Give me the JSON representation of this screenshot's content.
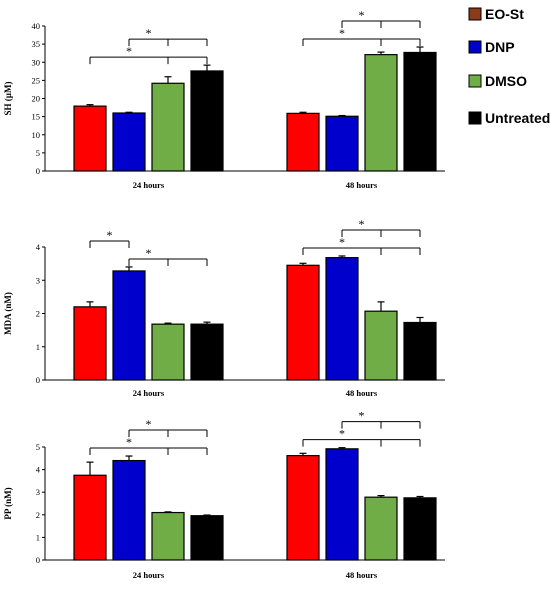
{
  "legend": [
    {
      "label": "EO-St",
      "color": "#8B3A1A"
    },
    {
      "label": "DNP",
      "color": "#0000CC"
    },
    {
      "label": "DMSO",
      "color": "#70AD47"
    },
    {
      "label": "Untreated",
      "color": "#000000"
    }
  ],
  "series_colors": [
    "#FF0000",
    "#0000CC",
    "#70AD47",
    "#000000"
  ],
  "significance_marker": "*",
  "chart_data": [
    {
      "type": "bar",
      "ylabel": "SH (µM)",
      "categories": [
        "24 hours",
        "48 hours"
      ],
      "ylim": [
        0,
        40
      ],
      "yticks": [
        0,
        5,
        10,
        15,
        20,
        25,
        30,
        35,
        40
      ],
      "series": [
        {
          "name": "EO-St",
          "values": [
            17.9,
            15.9
          ],
          "errors": [
            0.4,
            0.3
          ]
        },
        {
          "name": "DNP",
          "values": [
            16.0,
            15.1
          ],
          "errors": [
            0.2,
            0.2
          ]
        },
        {
          "name": "DMSO",
          "values": [
            24.2,
            32.1
          ],
          "errors": [
            1.8,
            0.7
          ]
        },
        {
          "name": "Untreated",
          "values": [
            27.6,
            32.7
          ],
          "errors": [
            1.6,
            1.5
          ]
        }
      ],
      "significance": [
        {
          "group": 0,
          "from": 1,
          "to": [
            2,
            3
          ]
        },
        {
          "group": 0,
          "from": 0,
          "to": [
            2,
            3
          ]
        },
        {
          "group": 1,
          "from": 1,
          "to": [
            2,
            3
          ]
        },
        {
          "group": 1,
          "from": 0,
          "to": [
            2,
            3
          ]
        }
      ]
    },
    {
      "type": "bar",
      "ylabel": "MDA (nM)",
      "categories": [
        "24 hours",
        "48 hours"
      ],
      "ylim": [
        0,
        4
      ],
      "yticks": [
        0,
        1,
        2,
        3,
        4
      ],
      "series": [
        {
          "name": "EO-St",
          "values": [
            2.2,
            3.45
          ],
          "errors": [
            0.15,
            0.06
          ]
        },
        {
          "name": "DNP",
          "values": [
            3.28,
            3.68
          ],
          "errors": [
            0.12,
            0.05
          ]
        },
        {
          "name": "DMSO",
          "values": [
            1.68,
            2.07
          ],
          "errors": [
            0.03,
            0.28
          ]
        },
        {
          "name": "Untreated",
          "values": [
            1.68,
            1.73
          ],
          "errors": [
            0.06,
            0.15
          ]
        }
      ],
      "significance": [
        {
          "group": 0,
          "from": 0,
          "to": [
            1
          ]
        },
        {
          "group": 0,
          "from": 1,
          "to": [
            2,
            3
          ]
        },
        {
          "group": 1,
          "from": 1,
          "to": [
            2,
            3
          ]
        },
        {
          "group": 1,
          "from": 0,
          "to": [
            2,
            3
          ]
        }
      ]
    },
    {
      "type": "bar",
      "ylabel": "PP (nM)",
      "categories": [
        "24 hours",
        "48 hours"
      ],
      "ylim": [
        0,
        5
      ],
      "yticks": [
        0,
        1,
        2,
        3,
        4,
        5
      ],
      "series": [
        {
          "name": "EO-St",
          "values": [
            3.75,
            4.62
          ],
          "errors": [
            0.58,
            0.1
          ]
        },
        {
          "name": "DNP",
          "values": [
            4.4,
            4.92
          ],
          "errors": [
            0.2,
            0.05
          ]
        },
        {
          "name": "DMSO",
          "values": [
            2.1,
            2.78
          ],
          "errors": [
            0.03,
            0.07
          ]
        },
        {
          "name": "Untreated",
          "values": [
            1.96,
            2.75
          ],
          "errors": [
            0.03,
            0.06
          ]
        }
      ],
      "significance": [
        {
          "group": 0,
          "from": 1,
          "to": [
            2,
            3
          ]
        },
        {
          "group": 0,
          "from": 0,
          "to": [
            2,
            3
          ]
        },
        {
          "group": 1,
          "from": 1,
          "to": [
            2,
            3
          ]
        },
        {
          "group": 1,
          "from": 0,
          "to": [
            2,
            3
          ]
        }
      ]
    }
  ]
}
